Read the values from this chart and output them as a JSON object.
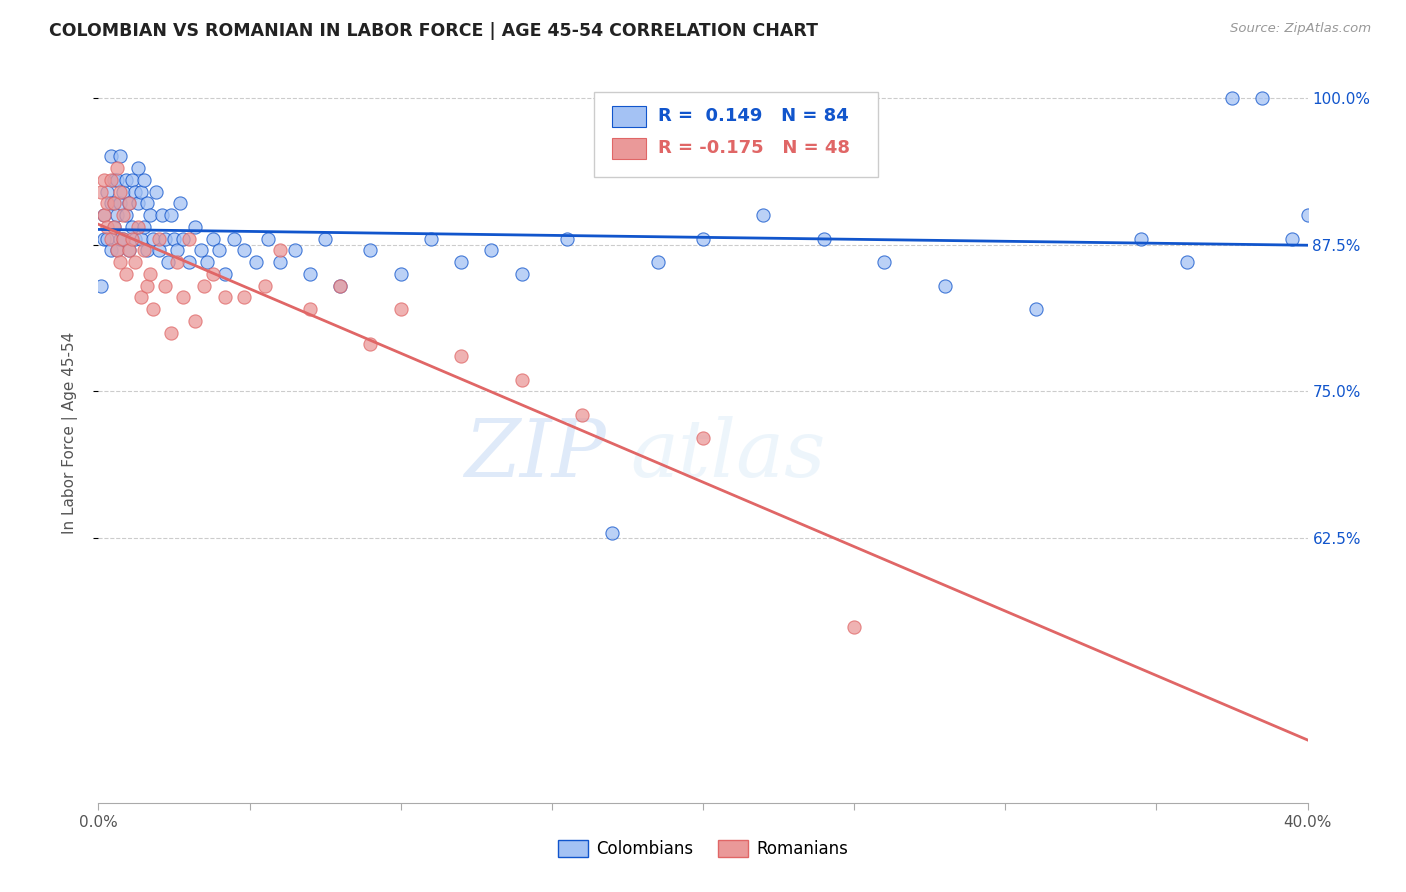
{
  "title": "COLOMBIAN VS ROMANIAN IN LABOR FORCE | AGE 45-54 CORRELATION CHART",
  "source_text": "Source: ZipAtlas.com",
  "ylabel": "In Labor Force | Age 45-54",
  "xlim": [
    0.0,
    0.4
  ],
  "ylim": [
    0.4,
    1.03
  ],
  "yticks": [
    0.625,
    0.75,
    0.875,
    1.0
  ],
  "ytick_labels": [
    "62.5%",
    "75.0%",
    "87.5%",
    "100.0%"
  ],
  "xticks": [
    0.0,
    0.05,
    0.1,
    0.15,
    0.2,
    0.25,
    0.3,
    0.35,
    0.4
  ],
  "xtick_labels": [
    "0.0%",
    "",
    "",
    "",
    "",
    "",
    "",
    "",
    "40.0%"
  ],
  "colombian_color": "#a4c2f4",
  "romanian_color": "#ea9999",
  "trendline_colombian_color": "#1155cc",
  "trendline_romanian_color": "#e06666",
  "R_colombian": 0.149,
  "N_colombian": 84,
  "R_romanian": -0.175,
  "N_romanian": 48,
  "watermark_zip": "ZIP",
  "watermark_atlas": "atlas",
  "background_color": "#ffffff",
  "colombians_x": [
    0.001,
    0.002,
    0.002,
    0.003,
    0.003,
    0.004,
    0.004,
    0.004,
    0.005,
    0.005,
    0.005,
    0.006,
    0.006,
    0.006,
    0.007,
    0.007,
    0.007,
    0.008,
    0.008,
    0.009,
    0.009,
    0.01,
    0.01,
    0.011,
    0.011,
    0.012,
    0.012,
    0.013,
    0.013,
    0.014,
    0.014,
    0.015,
    0.015,
    0.016,
    0.016,
    0.017,
    0.018,
    0.019,
    0.02,
    0.021,
    0.022,
    0.023,
    0.024,
    0.025,
    0.026,
    0.027,
    0.028,
    0.03,
    0.032,
    0.034,
    0.036,
    0.038,
    0.04,
    0.042,
    0.045,
    0.048,
    0.052,
    0.056,
    0.06,
    0.065,
    0.07,
    0.075,
    0.08,
    0.09,
    0.1,
    0.11,
    0.12,
    0.13,
    0.14,
    0.155,
    0.17,
    0.185,
    0.2,
    0.22,
    0.24,
    0.26,
    0.28,
    0.31,
    0.345,
    0.36,
    0.375,
    0.385,
    0.395,
    0.4
  ],
  "colombians_y": [
    0.84,
    0.88,
    0.9,
    0.88,
    0.92,
    0.87,
    0.91,
    0.95,
    0.89,
    0.91,
    0.93,
    0.87,
    0.9,
    0.93,
    0.88,
    0.91,
    0.95,
    0.88,
    0.92,
    0.9,
    0.93,
    0.87,
    0.91,
    0.89,
    0.93,
    0.88,
    0.92,
    0.91,
    0.94,
    0.88,
    0.92,
    0.89,
    0.93,
    0.87,
    0.91,
    0.9,
    0.88,
    0.92,
    0.87,
    0.9,
    0.88,
    0.86,
    0.9,
    0.88,
    0.87,
    0.91,
    0.88,
    0.86,
    0.89,
    0.87,
    0.86,
    0.88,
    0.87,
    0.85,
    0.88,
    0.87,
    0.86,
    0.88,
    0.86,
    0.87,
    0.85,
    0.88,
    0.84,
    0.87,
    0.85,
    0.88,
    0.86,
    0.87,
    0.85,
    0.88,
    0.63,
    0.86,
    0.88,
    0.9,
    0.88,
    0.86,
    0.84,
    0.82,
    0.88,
    0.86,
    1.0,
    1.0,
    0.88,
    0.9
  ],
  "romanians_x": [
    0.001,
    0.002,
    0.002,
    0.003,
    0.003,
    0.004,
    0.004,
    0.005,
    0.005,
    0.006,
    0.006,
    0.007,
    0.007,
    0.008,
    0.008,
    0.009,
    0.01,
    0.01,
    0.011,
    0.012,
    0.013,
    0.014,
    0.015,
    0.016,
    0.017,
    0.018,
    0.02,
    0.022,
    0.024,
    0.026,
    0.028,
    0.03,
    0.032,
    0.035,
    0.038,
    0.042,
    0.048,
    0.055,
    0.06,
    0.07,
    0.08,
    0.09,
    0.1,
    0.12,
    0.14,
    0.16,
    0.2,
    0.25
  ],
  "romanians_y": [
    0.92,
    0.9,
    0.93,
    0.91,
    0.89,
    0.93,
    0.88,
    0.91,
    0.89,
    0.94,
    0.87,
    0.92,
    0.86,
    0.9,
    0.88,
    0.85,
    0.91,
    0.87,
    0.88,
    0.86,
    0.89,
    0.83,
    0.87,
    0.84,
    0.85,
    0.82,
    0.88,
    0.84,
    0.8,
    0.86,
    0.83,
    0.88,
    0.81,
    0.84,
    0.85,
    0.83,
    0.83,
    0.84,
    0.87,
    0.82,
    0.84,
    0.79,
    0.82,
    0.78,
    0.76,
    0.73,
    0.71,
    0.55
  ]
}
